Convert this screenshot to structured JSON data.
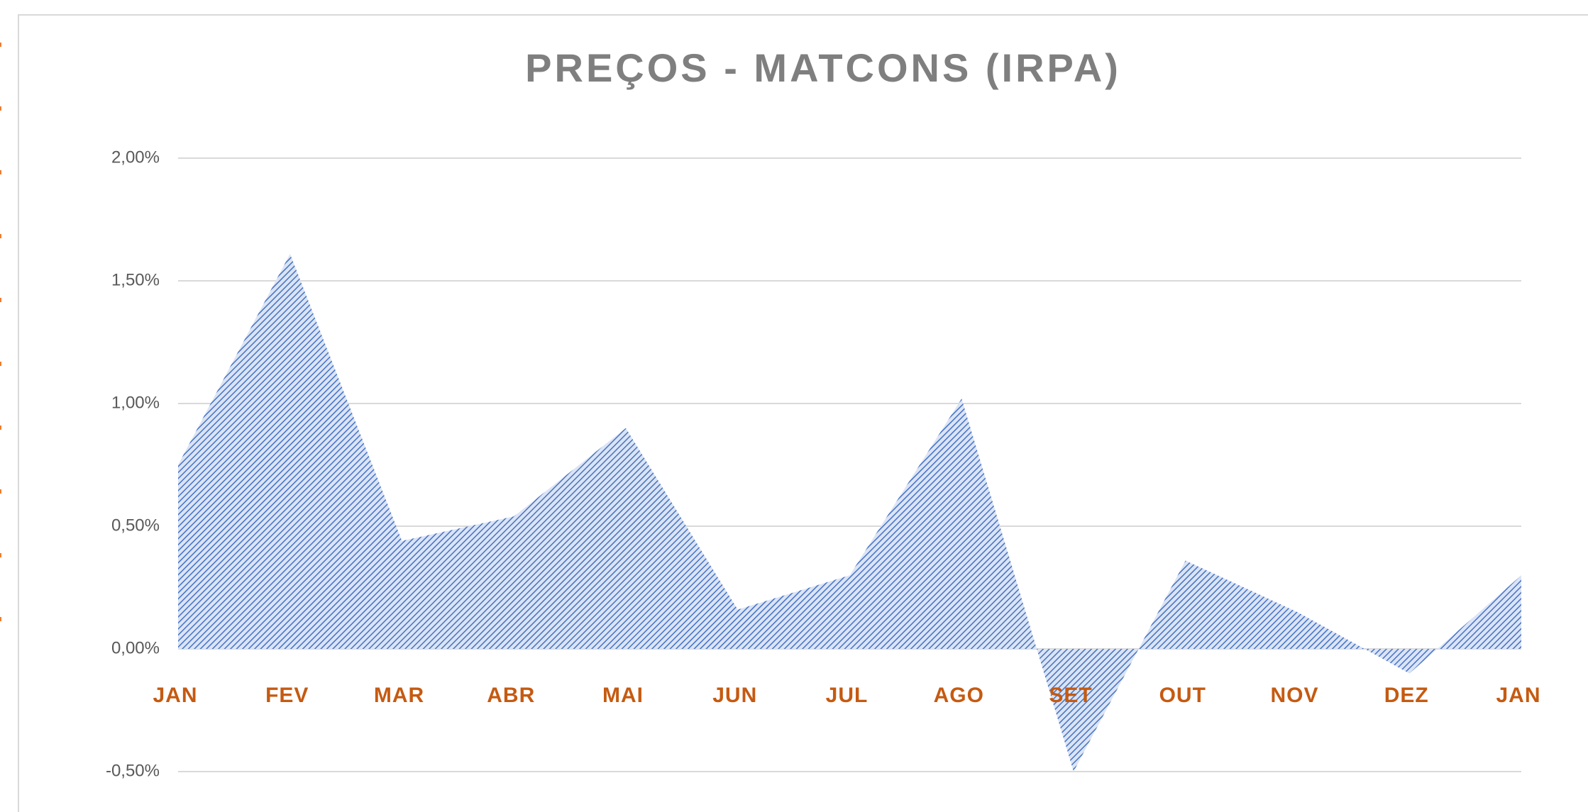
{
  "chart_data": {
    "type": "area",
    "title": "PREÇOS - MATCONS (IRPA)",
    "categories": [
      "JAN",
      "FEV",
      "MAR",
      "ABR",
      "MAI",
      "JUN",
      "JUL",
      "AGO",
      "SET",
      "OUT",
      "NOV",
      "DEZ",
      "JAN"
    ],
    "values": [
      0.75,
      1.61,
      0.44,
      0.54,
      0.9,
      0.16,
      0.3,
      1.02,
      -0.5,
      0.36,
      0.15,
      -0.1,
      0.3
    ],
    "color": "#4472c4",
    "ylim": [
      -0.5,
      2.0
    ],
    "yticks": [
      {
        "value": -0.5,
        "label": "-0,50%"
      },
      {
        "value": 0,
        "label": "0,00%"
      },
      {
        "value": 0.5,
        "label": "0,50%"
      },
      {
        "value": 1.0,
        "label": "1,00%"
      },
      {
        "value": 1.5,
        "label": "1,50%"
      },
      {
        "value": 2.0,
        "label": "2,00%"
      }
    ],
    "grid": true
  }
}
